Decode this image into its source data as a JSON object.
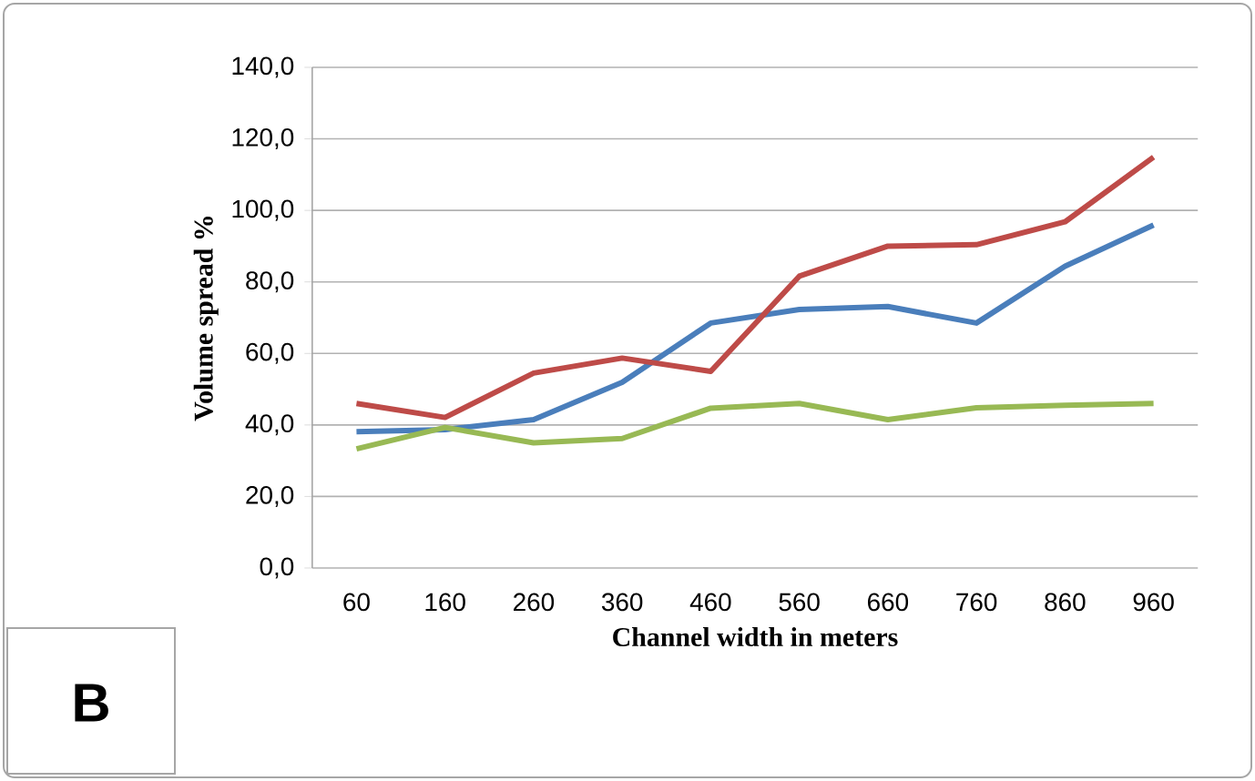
{
  "chart_data": {
    "type": "line",
    "xlabel": "Channel width in meters",
    "ylabel": "Volume spread %",
    "categories": [
      "60",
      "160",
      "260",
      "360",
      "460",
      "560",
      "660",
      "760",
      "860",
      "960"
    ],
    "series": [
      {
        "color": "#4a7ebb",
        "values": [
          38.1,
          38.7,
          41.5,
          51.9,
          68.5,
          72.3,
          73.1,
          68.5,
          84.4,
          95.9
        ]
      },
      {
        "color": "#be4b48",
        "values": [
          46.0,
          42.1,
          54.5,
          58.7,
          55.0,
          81.6,
          90.0,
          90.4,
          96.8,
          114.9
        ]
      },
      {
        "color": "#98b954",
        "values": [
          33.3,
          39.3,
          35.0,
          36.2,
          44.7,
          46.0,
          41.5,
          44.8,
          45.5,
          46.0
        ]
      }
    ],
    "ylim": [
      0,
      140
    ],
    "yticks": [
      {
        "value": 0,
        "label": "0,0"
      },
      {
        "value": 20,
        "label": "20,0"
      },
      {
        "value": 40,
        "label": "40,0"
      },
      {
        "value": 60,
        "label": "60,0"
      },
      {
        "value": 80,
        "label": "80,0"
      },
      {
        "value": 100,
        "label": "100,0"
      },
      {
        "value": 120,
        "label": "120,0"
      },
      {
        "value": 140,
        "label": "140,0"
      }
    ],
    "grid": "y",
    "marker": "none",
    "line_style": "solid",
    "annotations": [
      "B"
    ]
  }
}
